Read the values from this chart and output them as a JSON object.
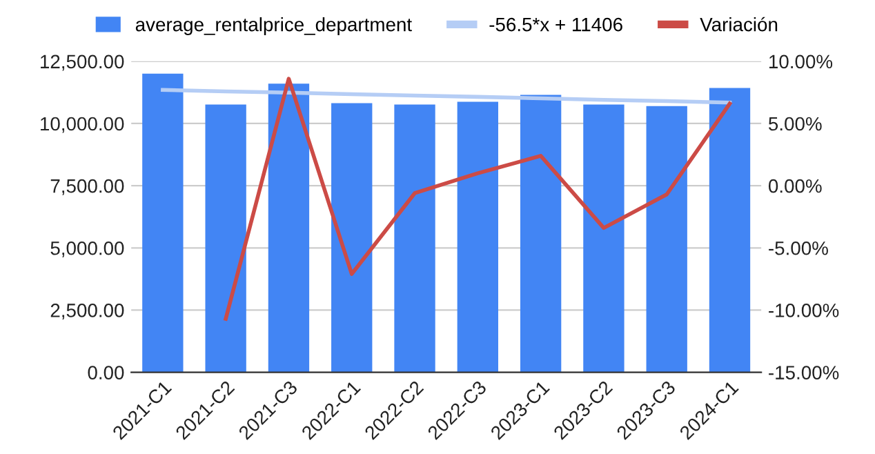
{
  "chart_data": {
    "type": "bar",
    "categories": [
      "2021-C1",
      "2021-C2",
      "2021-C3",
      "2022-C1",
      "2022-C2",
      "2022-C3",
      "2023-C1",
      "2023-C2",
      "2023-C3",
      "2024-C1"
    ],
    "series": [
      {
        "name": "average_rentalprice_department",
        "color": "#4285f4",
        "values": [
          12000,
          10760,
          11600,
          10820,
          10760,
          10870,
          11150,
          10760,
          10700,
          11430
        ]
      },
      {
        "name": "-56.5*x + 11406",
        "color": "#b5cdf5",
        "type": "line",
        "values": [
          11350,
          11290,
          11240,
          11180,
          11120,
          11070,
          11010,
          10950,
          10900,
          10840
        ]
      },
      {
        "name": "Variación",
        "color": "#cc4b46",
        "type": "line",
        "axis": "y2",
        "values": [
          null,
          -10.7,
          8.6,
          -7.1,
          -0.6,
          1.0,
          2.4,
          -3.4,
          -0.7,
          6.6
        ]
      }
    ],
    "ylim": [
      0,
      12500
    ],
    "yticks": [
      {
        "value": 0,
        "label": "0.00"
      },
      {
        "value": 2500,
        "label": "2,500.00"
      },
      {
        "value": 5000,
        "label": "5,000.00"
      },
      {
        "value": 7500,
        "label": "7,500.00"
      },
      {
        "value": 10000,
        "label": "10,000.00"
      },
      {
        "value": 12500,
        "label": "12,500.00"
      }
    ],
    "y2lim": [
      -15,
      10
    ],
    "y2ticks": [
      {
        "value": -15,
        "label": "-15.00%"
      },
      {
        "value": -10,
        "label": "-10.00%"
      },
      {
        "value": -5,
        "label": "-5.00%"
      },
      {
        "value": 0,
        "label": "0.00%"
      },
      {
        "value": 5,
        "label": "5.00%"
      },
      {
        "value": 10,
        "label": "10.00%"
      }
    ],
    "grid": "y",
    "legend": "top"
  }
}
